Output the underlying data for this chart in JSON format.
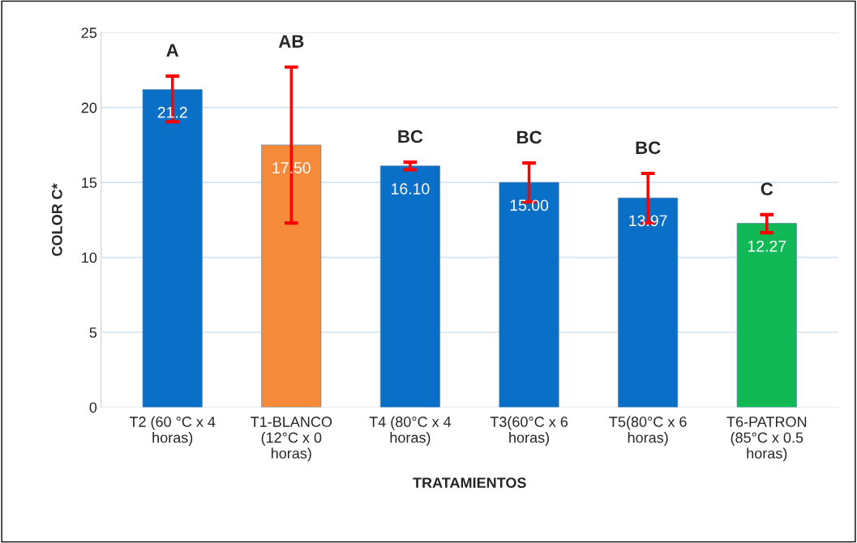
{
  "chart_data": {
    "type": "bar",
    "xlabel": "TRATAMIENTOS",
    "ylabel": "COLOR C*",
    "categories": [
      "T2 (60 °C x 4\nhoras)",
      "T1-BLANCO\n(12°C x 0\nhoras)",
      "T4 (80°C x 4\nhoras)",
      "T3(60°C x 6\nhoras)",
      "T5(80°C x 6\nhoras)",
      "T6-PATRON\n(85°C x 0.5\nhoras)"
    ],
    "values": [
      21.2,
      17.5,
      16.1,
      15.0,
      13.97,
      12.27
    ],
    "value_labels": [
      "21.2",
      "17.50",
      "16.10",
      "15.00",
      "13.97",
      "12.27"
    ],
    "colors": [
      "#0a6fc6",
      "#f58a3a",
      "#0a6fc6",
      "#0a6fc6",
      "#0a6fc6",
      "#10b856"
    ],
    "errors": [
      [
        19.05,
        22.1
      ],
      [
        12.3,
        22.7
      ],
      [
        15.85,
        16.35
      ],
      [
        13.7,
        16.3
      ],
      [
        12.3,
        15.6
      ],
      [
        11.65,
        12.85
      ]
    ],
    "ylim": [
      0,
      25
    ],
    "yticks": [
      0,
      5,
      10,
      15,
      20,
      25
    ],
    "grid": "y",
    "annotations": [
      "A",
      "AB",
      "BC",
      "BC",
      "BC",
      "C"
    ]
  }
}
